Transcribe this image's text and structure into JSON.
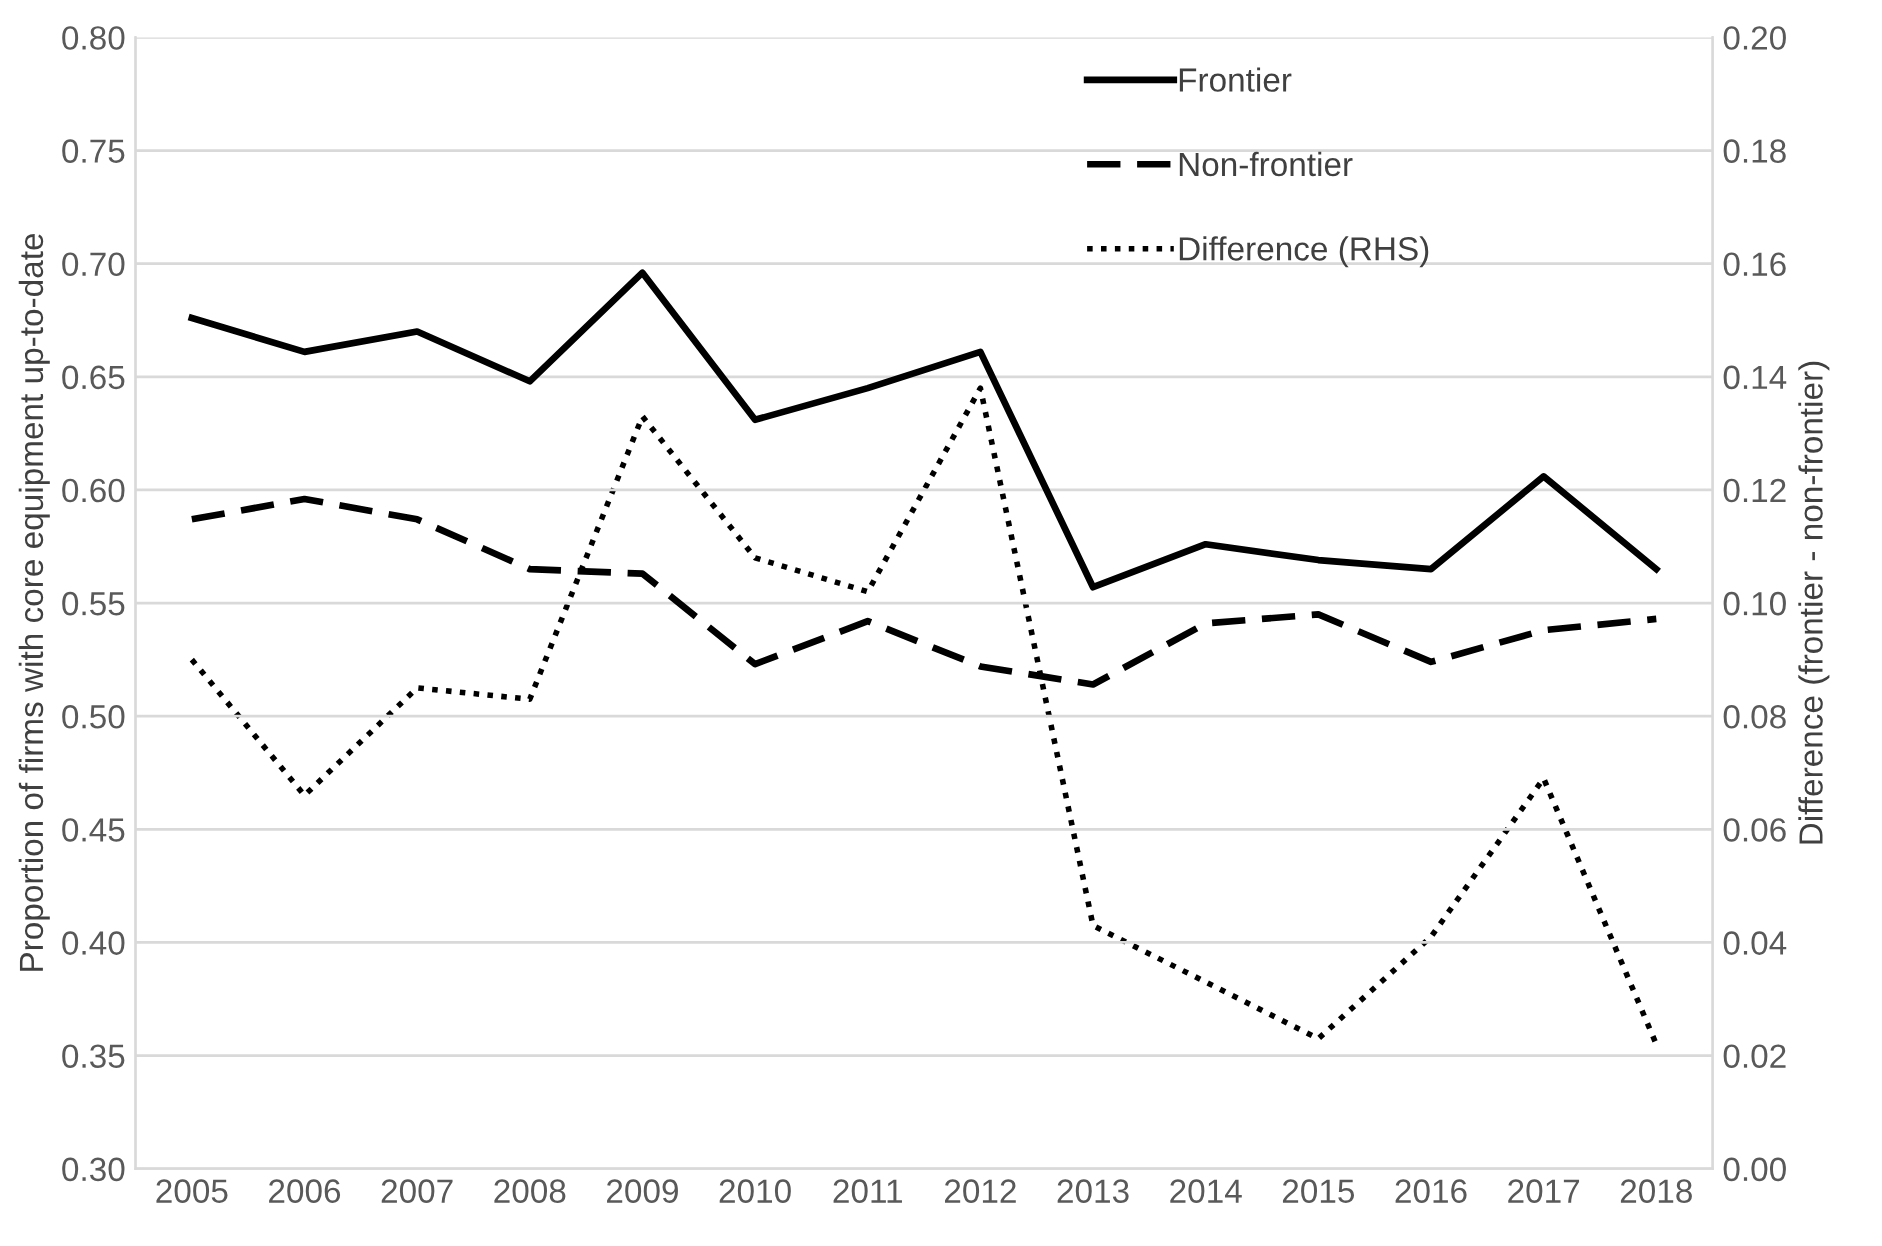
{
  "chart_data": {
    "type": "line",
    "ylabel": "Proportion of firms with core equipment up-to-date",
    "y2label": "Difference (frontier - non-frontier)",
    "categories": [
      "2005",
      "2006",
      "2007",
      "2008",
      "2009",
      "2010",
      "2011",
      "2012",
      "2013",
      "2014",
      "2015",
      "2016",
      "2017",
      "2018"
    ],
    "series": [
      {
        "name": "Frontier",
        "color": "#000000",
        "line_style": "solid",
        "values": [
          0.676,
          0.661,
          0.67,
          0.648,
          0.696,
          0.631,
          0.645,
          0.661,
          0.557,
          0.576,
          0.569,
          0.565,
          0.606,
          0.565
        ]
      },
      {
        "name": "Non-frontier",
        "color": "#000000",
        "line_style": "dashed",
        "values": [
          0.587,
          0.596,
          0.587,
          0.565,
          0.563,
          0.523,
          0.542,
          0.522,
          0.514,
          0.541,
          0.545,
          0.524,
          0.538,
          0.543
        ]
      },
      {
        "name": "Difference (RHS)",
        "color": "#000000",
        "line_style": "dotted",
        "axis": "y2",
        "values": [
          0.09,
          0.066,
          0.085,
          0.083,
          0.133,
          0.108,
          0.102,
          0.138,
          0.043,
          0.033,
          0.023,
          0.041,
          0.069,
          0.022
        ]
      }
    ],
    "ylim": [
      0.3,
      0.8
    ],
    "yticks": [
      {
        "value": 0.3,
        "label": "0.30"
      },
      {
        "value": 0.35,
        "label": "0.35"
      },
      {
        "value": 0.4,
        "label": "0.40"
      },
      {
        "value": 0.45,
        "label": "0.45"
      },
      {
        "value": 0.5,
        "label": "0.50"
      },
      {
        "value": 0.55,
        "label": "0.55"
      },
      {
        "value": 0.6,
        "label": "0.60"
      },
      {
        "value": 0.65,
        "label": "0.65"
      },
      {
        "value": 0.7,
        "label": "0.70"
      },
      {
        "value": 0.75,
        "label": "0.75"
      },
      {
        "value": 0.8,
        "label": "0.80"
      }
    ],
    "y2lim": [
      0.0,
      0.2
    ],
    "y2ticks": [
      {
        "value": 0.0,
        "label": "0.00"
      },
      {
        "value": 0.02,
        "label": "0.02"
      },
      {
        "value": 0.04,
        "label": "0.04"
      },
      {
        "value": 0.06,
        "label": "0.06"
      },
      {
        "value": 0.08,
        "label": "0.08"
      },
      {
        "value": 0.1,
        "label": "0.10"
      },
      {
        "value": 0.12,
        "label": "0.12"
      },
      {
        "value": 0.14,
        "label": "0.14"
      },
      {
        "value": 0.16,
        "label": "0.16"
      },
      {
        "value": 0.18,
        "label": "0.18"
      },
      {
        "value": 0.2,
        "label": "0.20"
      }
    ],
    "grid": "y",
    "legend": "top right",
    "marker": "none"
  }
}
